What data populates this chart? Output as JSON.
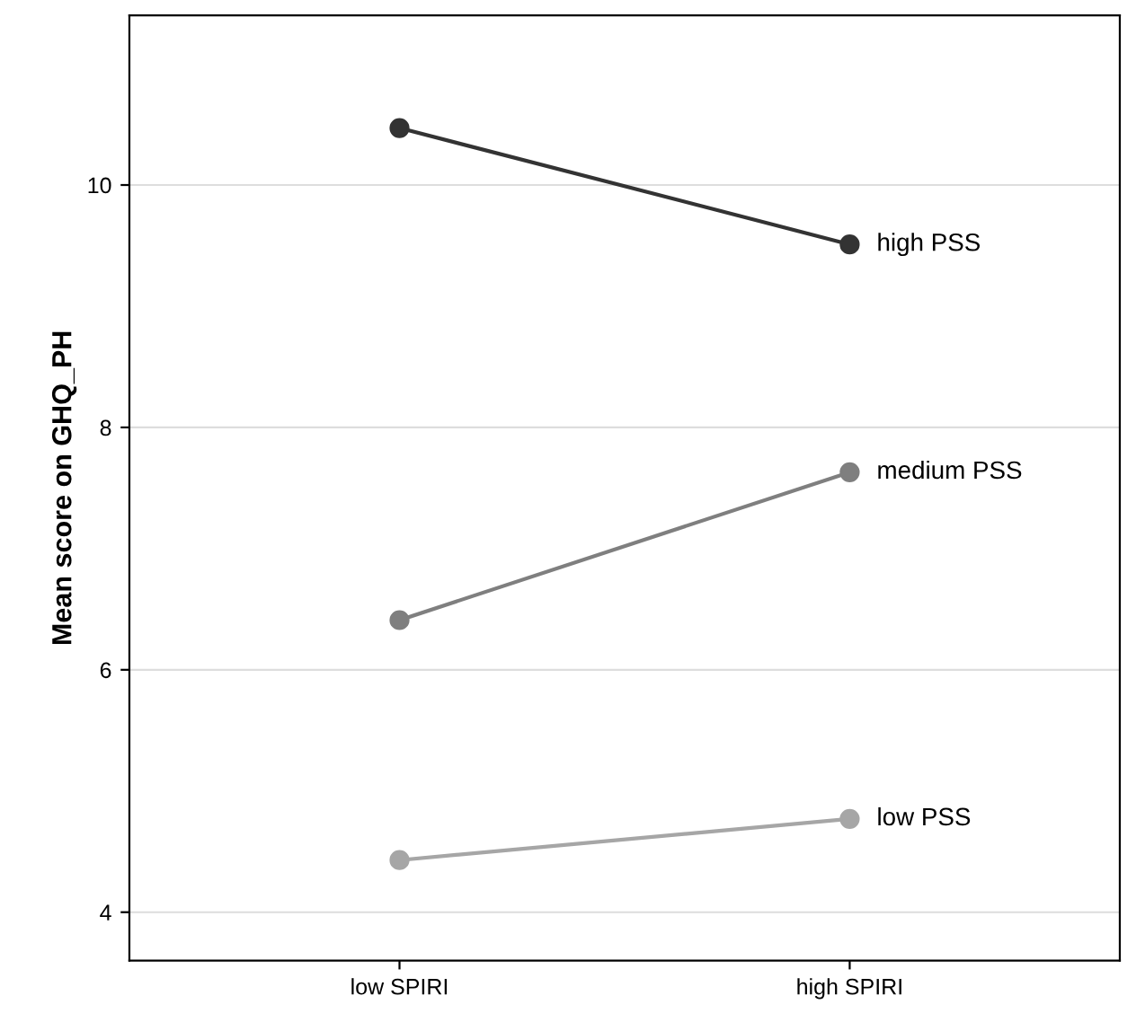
{
  "chart_data": {
    "type": "line",
    "ylabel": "Mean score on GHQ_PH",
    "categories": [
      "low SPIRI",
      "high SPIRI"
    ],
    "series": [
      {
        "name": "high PSS",
        "color": "#333333",
        "values": [
          10.47,
          9.51
        ]
      },
      {
        "name": "medium PSS",
        "color": "#7f7f7f",
        "values": [
          6.41,
          7.63
        ]
      },
      {
        "name": "low PSS",
        "color": "#a6a6a6",
        "values": [
          4.43,
          4.77
        ]
      }
    ],
    "ylim": [
      3.6,
      11.4
    ],
    "yticks": [
      4,
      6,
      8,
      10
    ],
    "grid": "y",
    "marker": "circle",
    "line_style": "solid",
    "legend": false
  }
}
